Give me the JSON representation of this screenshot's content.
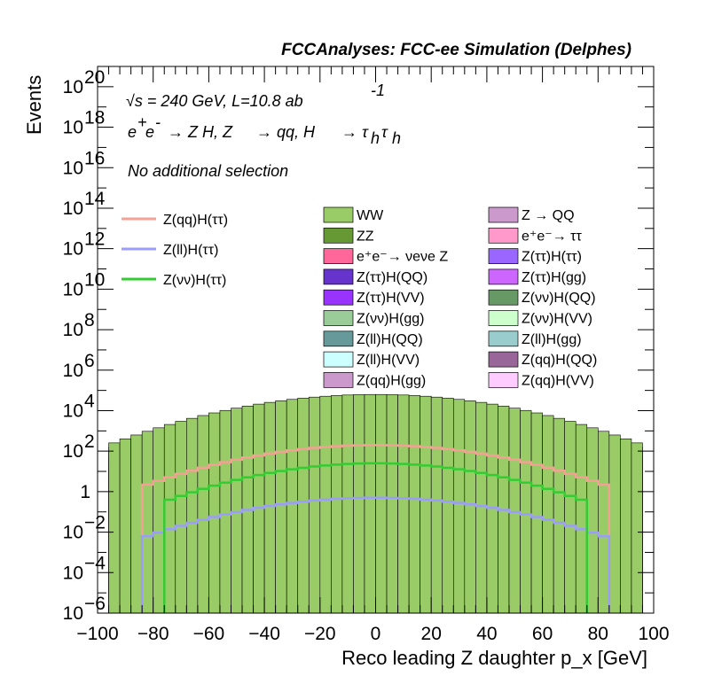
{
  "chart_data": {
    "type": "stacked-histogram",
    "title": "FCCAnalyses: FCC-ee Simulation (Delphes)",
    "xlabel": "Reco leading Z daughter p_x [GeV]",
    "ylabel": "Events",
    "xlim": [
      -100,
      100
    ],
    "ylim": [
      1e-06,
      1e+21
    ],
    "log_y": true,
    "x_ticks": [
      "−100",
      "−80",
      "−60",
      "−40",
      "−20",
      "0",
      "20",
      "40",
      "60",
      "80",
      "100"
    ],
    "annotations": {
      "energy": "√s = 240 GeV, L=10.8 ab",
      "energy_sup": "-1",
      "process": "e⁺e⁻ → Z H, Z → qq, H → τhτh",
      "process_parts": {
        "ee": "e",
        "plus": "+",
        "minus": "-",
        "zh": "→ Z H, Z",
        "qq": "→ qq, H",
        "tt": "→ τ",
        "h1": "h",
        "tau2": "τ",
        "h2": "h"
      },
      "selection": "No additional selection"
    },
    "signals": [
      {
        "name": "Z(qq)H(ττ)",
        "color": "#f4a095",
        "peak_log": 2.3,
        "width": 83
      },
      {
        "name": "Z(ll)H(ττ)",
        "color": "#9c9cfc",
        "peak_log": -0.3,
        "width": 84
      },
      {
        "name": "Z(νν)H(ττ)",
        "color": "#33cc33",
        "peak_log": 1.4,
        "width": 78
      }
    ],
    "stack": [
      {
        "name": "WW",
        "color": "#99cc66",
        "peak_log": 4.8,
        "shape": "wide"
      },
      {
        "name": "Z → QQ",
        "color": "#cc99cc",
        "peak_log": 4.6,
        "shape": "wide"
      },
      {
        "name": "ZZ",
        "color": "#669933",
        "peak_log": 4.4,
        "shape": "wide"
      },
      {
        "name": "e⁺e⁻→ ττ",
        "color": "#ff99cc",
        "peak_log": 4.1,
        "shape": "wide"
      },
      {
        "name": "e⁺e⁻→ νeνe Z",
        "color": "#ff6699",
        "peak_log": 3.4,
        "shape": "wide"
      },
      {
        "name": "Z(ττ)H(ττ)",
        "color": "#9966ff",
        "peak_log": 2.0,
        "shape": "mid"
      },
      {
        "name": "Z(ττ)H(QQ)",
        "color": "#6633cc",
        "peak_log": 1.9,
        "shape": "mid"
      },
      {
        "name": "Z(ττ)H(gg)",
        "color": "#cc66ff",
        "peak_log": 1.7,
        "shape": "mid"
      },
      {
        "name": "Z(ττ)H(VV)",
        "color": "#9933ff",
        "peak_log": 1.5,
        "shape": "mid"
      },
      {
        "name": "Z(νν)H(QQ)",
        "color": "#669966",
        "peak_log": 1.3,
        "shape": "mid"
      },
      {
        "name": "Z(νν)H(gg)",
        "color": "#99cc99",
        "peak_log": 1.0,
        "shape": "mid"
      },
      {
        "name": "Z(νν)H(VV)",
        "color": "#ccffcc",
        "peak_log": 0.7,
        "shape": "mid"
      },
      {
        "name": "Z(ll)H(QQ)",
        "color": "#669999",
        "peak_log": 0.3,
        "shape": "narrow"
      },
      {
        "name": "Z(ll)H(gg)",
        "color": "#99cccc",
        "peak_log": 0.0,
        "shape": "narrow"
      },
      {
        "name": "Z(ll)H(VV)",
        "color": "#ccffff",
        "peak_log": -1.5,
        "shape": "narrow"
      },
      {
        "name": "Z(qq)H(QQ)",
        "color": "#996699",
        "peak_log": 0.5,
        "shape": "narrow"
      },
      {
        "name": "Z(qq)H(gg)",
        "color": "#cc99cc",
        "peak_log": 0.8,
        "shape": "narrow"
      },
      {
        "name": "Z(qq)H(VV)",
        "color": "#ffccff",
        "peak_log": 0.2,
        "shape": "narrow"
      }
    ],
    "legend_order": [
      [
        "WW",
        "Z → QQ"
      ],
      [
        "ZZ",
        "e⁺e⁻→ ττ"
      ],
      [
        "e⁺e⁻→ νeνe Z",
        "Z(ττ)H(ττ)"
      ],
      [
        "Z(ττ)H(QQ)",
        "Z(ττ)H(gg)"
      ],
      [
        "Z(ττ)H(VV)",
        "Z(νν)H(QQ)"
      ],
      [
        "Z(νν)H(gg)",
        "Z(νν)H(VV)"
      ],
      [
        "Z(ll)H(QQ)",
        "Z(ll)H(gg)"
      ],
      [
        "Z(ll)H(VV)",
        "Z(qq)H(QQ)"
      ],
      [
        "Z(qq)H(gg)",
        "Z(qq)H(VV)"
      ]
    ]
  }
}
